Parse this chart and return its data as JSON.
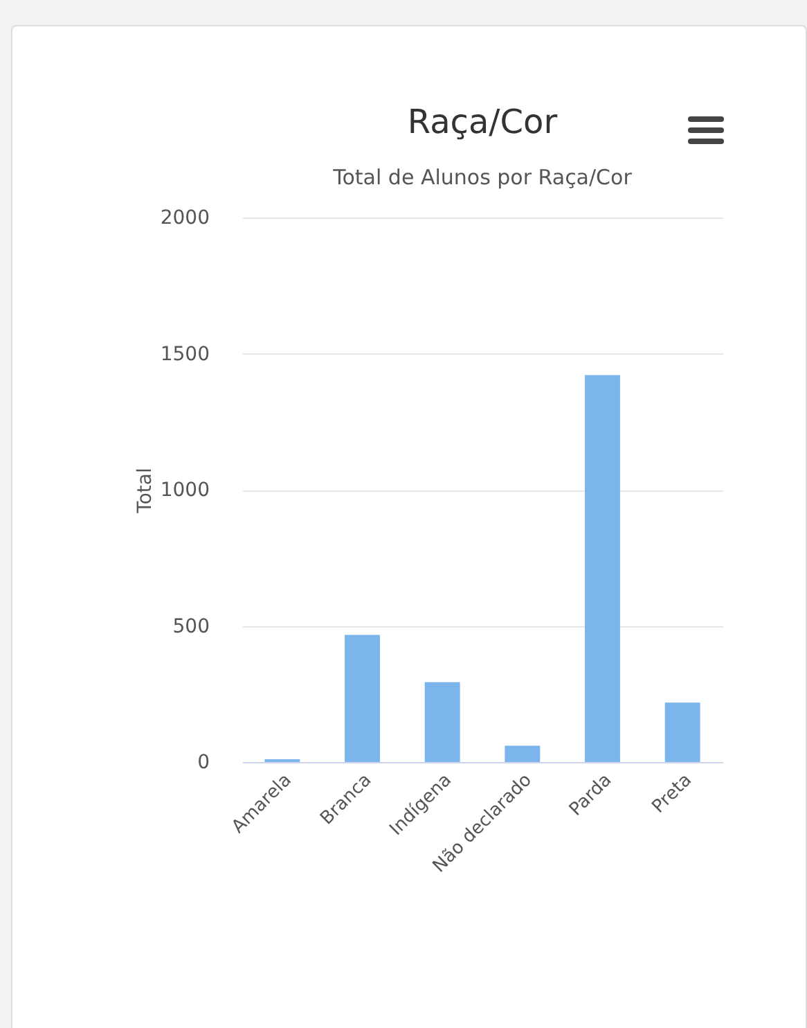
{
  "chart_data": {
    "type": "bar",
    "title": "Raça/Cor",
    "subtitle": "Total de Alunos por Raça/Cor",
    "ylabel": "Total",
    "categories": [
      "Amarela",
      "Branca",
      "Indígena",
      "Não declarado",
      "Parda",
      "Preta"
    ],
    "values": [
      10,
      467,
      293,
      60,
      1421,
      218
    ],
    "color": "#7cb5ec",
    "ylim": [
      0,
      2000
    ],
    "yticks": [
      0,
      500,
      1000,
      1500,
      2000
    ],
    "grid": "y"
  }
}
